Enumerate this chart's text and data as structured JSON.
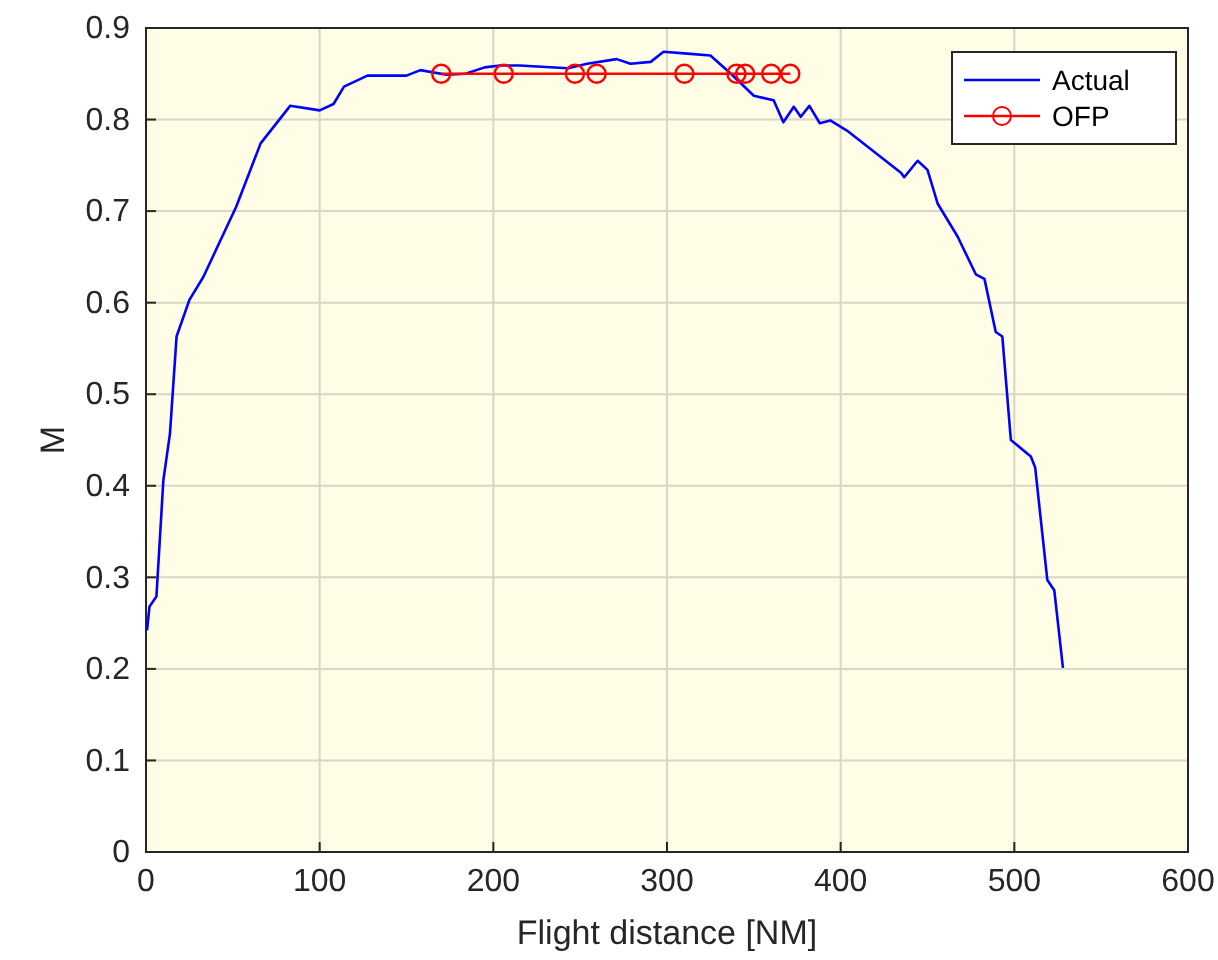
{
  "chart_data": {
    "type": "line",
    "xlabel": "Flight distance [NM]",
    "ylabel": "M",
    "xlim": [
      0,
      600
    ],
    "xticks": [
      0,
      100,
      200,
      300,
      400,
      500,
      600
    ],
    "ylim": [
      0,
      0.9
    ],
    "yticks": [
      0,
      0.1,
      0.2,
      0.3,
      0.4,
      0.5,
      0.6,
      0.7,
      0.8,
      0.9
    ],
    "grid": true,
    "legend": "top right",
    "series": [
      {
        "name": "Actual",
        "color": "#0000ff",
        "marker": "none",
        "x": [
          0.6,
          2,
          6,
          10,
          13.8,
          17.6,
          25,
          33,
          52,
          66,
          83,
          100,
          108,
          114,
          127.5,
          150,
          158,
          173,
          184,
          195,
          204,
          215,
          243,
          254,
          271,
          279,
          290.6,
          298,
          311.7,
          325,
          336.8,
          350,
          361.4,
          367,
          373,
          377,
          382,
          388,
          394,
          403.6,
          434.7,
          436.6,
          444.3,
          450,
          455.9,
          467.4,
          477.8,
          482.8,
          489.3,
          493.1,
          498,
          509.5,
          512,
          519,
          523,
          528
        ],
        "values": [
          0.242,
          0.268,
          0.279,
          0.406,
          0.457,
          0.563,
          0.603,
          0.628,
          0.705,
          0.774,
          0.815,
          0.81,
          0.817,
          0.836,
          0.848,
          0.848,
          0.854,
          0.849,
          0.85,
          0.857,
          0.859,
          0.859,
          0.856,
          0.861,
          0.866,
          0.861,
          0.863,
          0.874,
          0.872,
          0.87,
          0.85,
          0.826,
          0.821,
          0.797,
          0.814,
          0.803,
          0.815,
          0.796,
          0.799,
          0.788,
          0.742,
          0.737,
          0.755,
          0.745,
          0.708,
          0.672,
          0.631,
          0.626,
          0.568,
          0.563,
          0.45,
          0.432,
          0.42,
          0.297,
          0.286,
          0.201
        ]
      },
      {
        "name": "OFP",
        "color": "#ff0000",
        "marker": "circle",
        "x": [
          170,
          206,
          247,
          259.5,
          310,
          340,
          345,
          360,
          371
        ],
        "values": [
          0.85,
          0.85,
          0.85,
          0.85,
          0.85,
          0.85,
          0.85,
          0.85,
          0.85
        ]
      }
    ]
  }
}
